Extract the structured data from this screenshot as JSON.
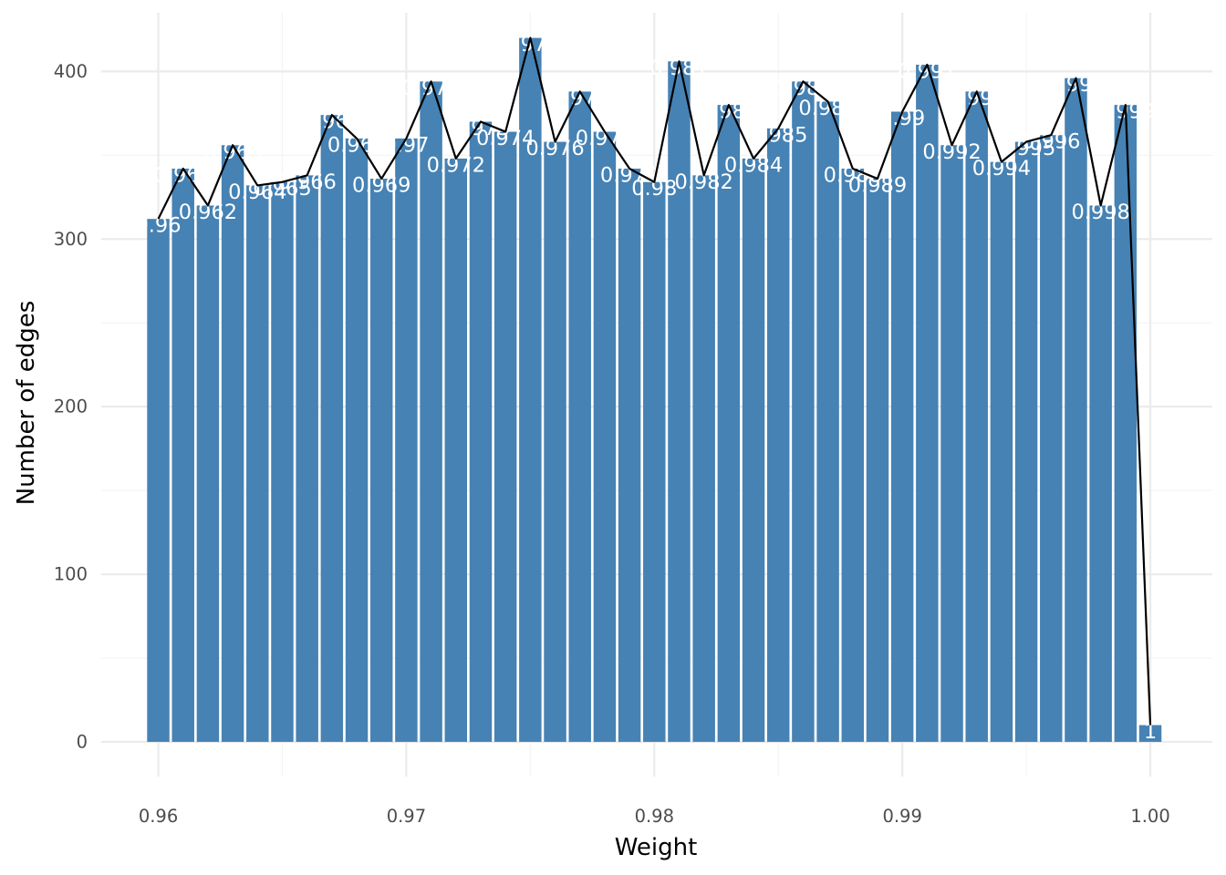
{
  "chart_data": {
    "type": "bar",
    "xlabel": "Weight",
    "ylabel": "Number of edges",
    "xlim": [
      0.9577,
      1.0025
    ],
    "ylim": [
      -20.7,
      435
    ],
    "x_ticks": [
      {
        "value": 0.96,
        "label": "0.96"
      },
      {
        "value": 0.97,
        "label": "0.97"
      },
      {
        "value": 0.98,
        "label": "0.98"
      },
      {
        "value": 0.99,
        "label": "0.99"
      },
      {
        "value": 1.0,
        "label": "1.00"
      }
    ],
    "y_ticks": [
      {
        "value": 0,
        "label": "0"
      },
      {
        "value": 100,
        "label": "100"
      },
      {
        "value": 200,
        "label": "200"
      },
      {
        "value": 300,
        "label": "300"
      },
      {
        "value": 400,
        "label": "400"
      }
    ],
    "bar_color": "#4682b4",
    "line_color": "#000000",
    "label_color": "#ffffff",
    "grid": true,
    "bars": [
      {
        "x": 0.96,
        "value": 312,
        "label": "0.96"
      },
      {
        "x": 0.961,
        "value": 342,
        "label": "0.961"
      },
      {
        "x": 0.962,
        "value": 320,
        "label": "0.962"
      },
      {
        "x": 0.963,
        "value": 356,
        "label": "0.963"
      },
      {
        "x": 0.964,
        "value": 332,
        "label": "0.964"
      },
      {
        "x": 0.965,
        "value": 334,
        "label": "0.965"
      },
      {
        "x": 0.966,
        "value": 338,
        "label": "0.966"
      },
      {
        "x": 0.967,
        "value": 374,
        "label": "0.967"
      },
      {
        "x": 0.968,
        "value": 360,
        "label": "0.968"
      },
      {
        "x": 0.969,
        "value": 336,
        "label": "0.969"
      },
      {
        "x": 0.97,
        "value": 360,
        "label": "0.97"
      },
      {
        "x": 0.971,
        "value": 394,
        "label": "0.971"
      },
      {
        "x": 0.972,
        "value": 348,
        "label": "0.972"
      },
      {
        "x": 0.973,
        "value": 370,
        "label": "0.973"
      },
      {
        "x": 0.974,
        "value": 364,
        "label": "0.974"
      },
      {
        "x": 0.975,
        "value": 420,
        "label": "0.975"
      },
      {
        "x": 0.976,
        "value": 358,
        "label": "0.976"
      },
      {
        "x": 0.977,
        "value": 388,
        "label": "0.977"
      },
      {
        "x": 0.978,
        "value": 364,
        "label": "0.978"
      },
      {
        "x": 0.979,
        "value": 342,
        "label": "0.979"
      },
      {
        "x": 0.98,
        "value": 334,
        "label": "0.98"
      },
      {
        "x": 0.981,
        "value": 406,
        "label": "0.981"
      },
      {
        "x": 0.982,
        "value": 338,
        "label": "0.982"
      },
      {
        "x": 0.983,
        "value": 380,
        "label": "0.983"
      },
      {
        "x": 0.984,
        "value": 348,
        "label": "0.984"
      },
      {
        "x": 0.985,
        "value": 366,
        "label": "0.985"
      },
      {
        "x": 0.986,
        "value": 394,
        "label": "0.986"
      },
      {
        "x": 0.987,
        "value": 382,
        "label": "0.987"
      },
      {
        "x": 0.988,
        "value": 342,
        "label": "0.988"
      },
      {
        "x": 0.989,
        "value": 336,
        "label": "0.989"
      },
      {
        "x": 0.99,
        "value": 376,
        "label": "0.99"
      },
      {
        "x": 0.991,
        "value": 404,
        "label": "0.991"
      },
      {
        "x": 0.992,
        "value": 356,
        "label": "0.992"
      },
      {
        "x": 0.993,
        "value": 388,
        "label": "0.993"
      },
      {
        "x": 0.994,
        "value": 346,
        "label": "0.994"
      },
      {
        "x": 0.995,
        "value": 358,
        "label": "0.995"
      },
      {
        "x": 0.996,
        "value": 362,
        "label": "0.996"
      },
      {
        "x": 0.997,
        "value": 396,
        "label": "0.997"
      },
      {
        "x": 0.998,
        "value": 320,
        "label": "0.998"
      },
      {
        "x": 0.999,
        "value": 380,
        "label": "0.999"
      },
      {
        "x": 1.0,
        "value": 10,
        "label": "1"
      }
    ]
  }
}
